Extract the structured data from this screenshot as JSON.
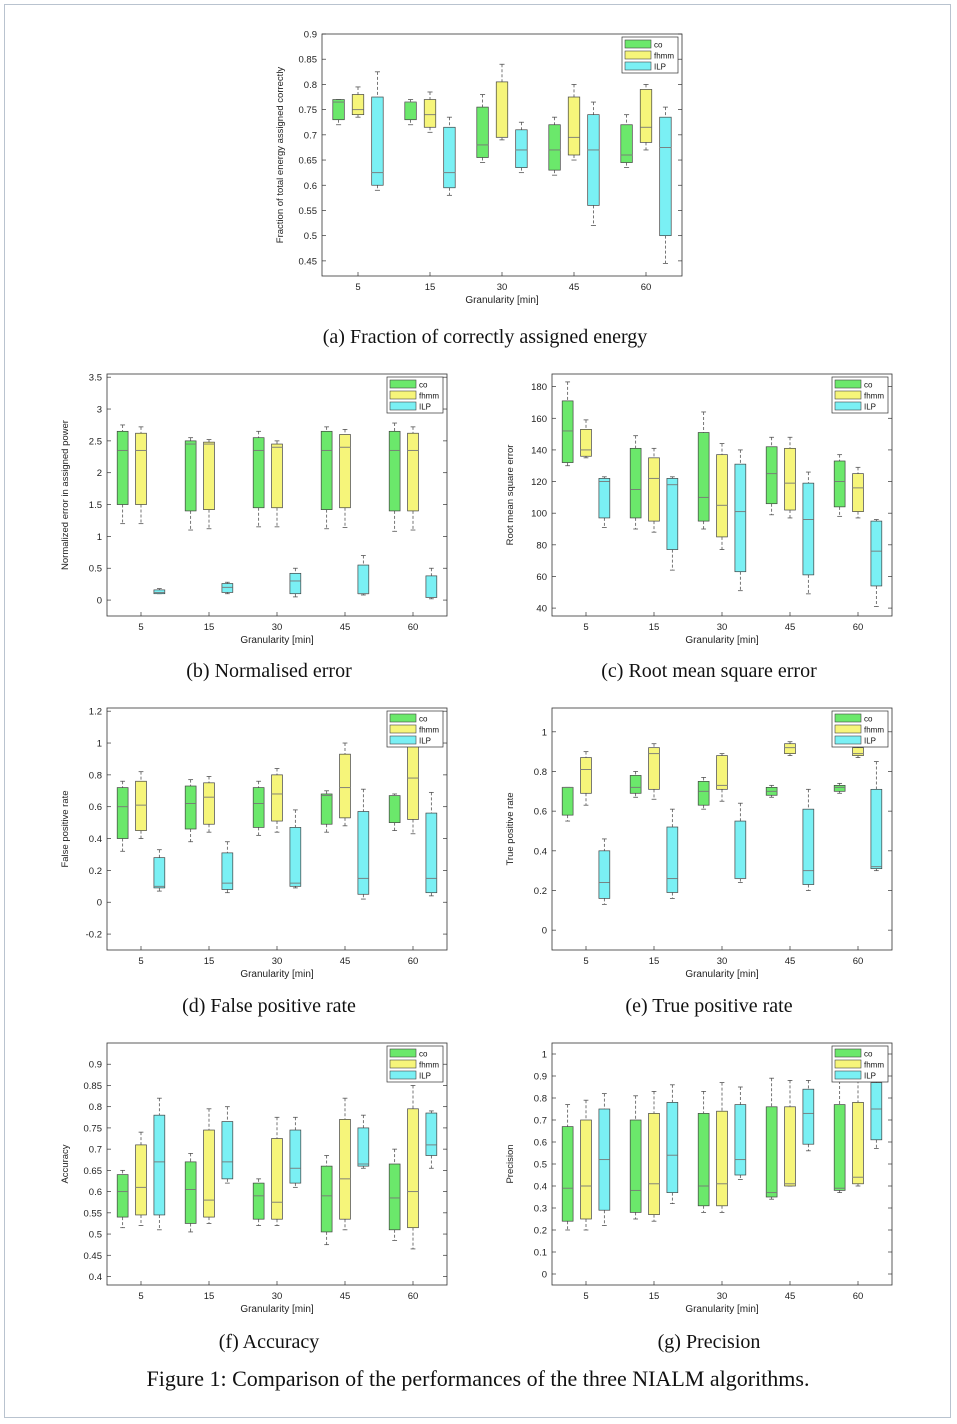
{
  "figure_caption": "Figure 1: Comparison of the performances of the three NIALM algorithms.",
  "legend": [
    "co",
    "fhmm",
    "ILP"
  ],
  "colors": {
    "co": "#6be86b",
    "fhmm": "#f6f57a",
    "ILP": "#7af0f4",
    "axis": "#333333",
    "whisker": "#555555"
  },
  "chart_data": [
    {
      "id": "a",
      "type": "box",
      "caption": "(a) Fraction of correctly assigned energy",
      "xlabel": "Granularity [min]",
      "ylabel": "Fraction of total energy assigned correctly",
      "categories": [
        "5",
        "15",
        "30",
        "45",
        "60"
      ],
      "ylim": [
        0.42,
        0.9
      ],
      "yticks": [
        0.45,
        0.5,
        0.55,
        0.6,
        0.65,
        0.7,
        0.75,
        0.8,
        0.85,
        0.9
      ],
      "legend_position": "top-right",
      "series": [
        {
          "name": "co",
          "boxes": [
            [
              0.72,
              0.73,
              0.765,
              0.77,
              0.77
            ],
            [
              0.72,
              0.73,
              0.765,
              0.765,
              0.77
            ],
            [
              0.645,
              0.655,
              0.68,
              0.755,
              0.78
            ],
            [
              0.62,
              0.63,
              0.67,
              0.72,
              0.735
            ],
            [
              0.635,
              0.645,
              0.66,
              0.72,
              0.74
            ]
          ]
        },
        {
          "name": "fhmm",
          "boxes": [
            [
              0.735,
              0.74,
              0.75,
              0.78,
              0.795
            ],
            [
              0.705,
              0.715,
              0.74,
              0.77,
              0.785
            ],
            [
              0.69,
              0.695,
              0.695,
              0.805,
              0.84
            ],
            [
              0.65,
              0.66,
              0.695,
              0.775,
              0.8
            ],
            [
              0.67,
              0.685,
              0.715,
              0.79,
              0.8
            ]
          ]
        },
        {
          "name": "ILP",
          "boxes": [
            [
              0.59,
              0.6,
              0.625,
              0.775,
              0.825
            ],
            [
              0.58,
              0.595,
              0.625,
              0.715,
              0.735
            ],
            [
              0.625,
              0.635,
              0.67,
              0.71,
              0.725
            ],
            [
              0.52,
              0.56,
              0.67,
              0.74,
              0.765
            ],
            [
              0.445,
              0.5,
              0.675,
              0.735,
              0.755
            ]
          ]
        }
      ]
    },
    {
      "id": "b",
      "type": "box",
      "caption": "(b) Normalised error",
      "xlabel": "Granularity [min]",
      "ylabel": "Normalized error in assigned power",
      "categories": [
        "5",
        "15",
        "30",
        "45",
        "60"
      ],
      "ylim": [
        -0.25,
        3.55
      ],
      "yticks": [
        0,
        0.5,
        1,
        1.5,
        2,
        2.5,
        3,
        3.5
      ],
      "legend_position": "top-right",
      "series": [
        {
          "name": "co",
          "boxes": [
            [
              1.2,
              1.5,
              2.35,
              2.65,
              2.75
            ],
            [
              1.1,
              1.4,
              2.45,
              2.5,
              2.55
            ],
            [
              1.15,
              1.45,
              2.35,
              2.55,
              2.65
            ],
            [
              1.12,
              1.42,
              2.35,
              2.65,
              2.72
            ],
            [
              1.08,
              1.4,
              2.35,
              2.65,
              2.78
            ]
          ]
        },
        {
          "name": "fhmm",
          "boxes": [
            [
              1.2,
              1.5,
              2.35,
              2.62,
              2.72
            ],
            [
              1.12,
              1.42,
              2.45,
              2.48,
              2.52
            ],
            [
              1.15,
              1.45,
              2.4,
              2.45,
              2.5
            ],
            [
              1.14,
              1.45,
              2.4,
              2.6,
              2.68
            ],
            [
              1.1,
              1.4,
              2.35,
              2.62,
              2.72
            ]
          ]
        },
        {
          "name": "ILP",
          "boxes": [
            [
              0.1,
              0.1,
              0.12,
              0.16,
              0.18
            ],
            [
              0.1,
              0.12,
              0.2,
              0.26,
              0.28
            ],
            [
              0.05,
              0.1,
              0.3,
              0.42,
              0.5
            ],
            [
              0.08,
              0.1,
              0.1,
              0.55,
              0.7
            ],
            [
              0.02,
              0.04,
              0.04,
              0.38,
              0.5
            ]
          ]
        }
      ]
    },
    {
      "id": "c",
      "type": "box",
      "caption": "(c) Root mean square error",
      "xlabel": "Granularity [min]",
      "ylabel": "Root mean square error",
      "categories": [
        "5",
        "15",
        "30",
        "45",
        "60"
      ],
      "ylim": [
        35,
        188
      ],
      "yticks": [
        40,
        60,
        80,
        100,
        120,
        140,
        160,
        180
      ],
      "legend_position": "top-right",
      "series": [
        {
          "name": "co",
          "boxes": [
            [
              130,
              132,
              152,
              171,
              183
            ],
            [
              90,
              97,
              115,
              141,
              149
            ],
            [
              90,
              95,
              110,
              151,
              164
            ],
            [
              99,
              106,
              125,
              142,
              148
            ],
            [
              98,
              104,
              120,
              133,
              137
            ]
          ]
        },
        {
          "name": "fhmm",
          "boxes": [
            [
              135,
              136,
              140,
              153,
              159
            ],
            [
              88,
              95,
              122,
              135,
              141
            ],
            [
              77,
              85,
              105,
              137,
              144
            ],
            [
              97,
              102,
              119,
              141,
              148
            ],
            [
              97,
              101,
              116,
              125,
              129
            ]
          ]
        },
        {
          "name": "ILP",
          "boxes": [
            [
              91,
              97,
              120,
              122,
              123
            ],
            [
              64,
              77,
              118,
              122,
              123
            ],
            [
              51,
              63,
              101,
              131,
              140
            ],
            [
              49,
              61,
              96,
              119,
              126
            ],
            [
              41,
              54,
              76,
              95,
              96
            ]
          ]
        }
      ]
    },
    {
      "id": "d",
      "type": "box",
      "caption": "(d) False positive rate",
      "xlabel": "Granularity [min]",
      "ylabel": "False positive rate",
      "categories": [
        "5",
        "15",
        "30",
        "45",
        "60"
      ],
      "ylim": [
        -0.3,
        1.22
      ],
      "yticks": [
        -0.2,
        0,
        0.2,
        0.4,
        0.6,
        0.8,
        1,
        1.2
      ],
      "legend_position": "top-right",
      "series": [
        {
          "name": "co",
          "boxes": [
            [
              0.32,
              0.4,
              0.6,
              0.72,
              0.76
            ],
            [
              0.38,
              0.46,
              0.62,
              0.73,
              0.77
            ],
            [
              0.42,
              0.47,
              0.62,
              0.72,
              0.76
            ],
            [
              0.44,
              0.49,
              0.67,
              0.68,
              0.7
            ],
            [
              0.45,
              0.5,
              0.67,
              0.67,
              0.68
            ]
          ]
        },
        {
          "name": "fhmm",
          "boxes": [
            [
              0.4,
              0.45,
              0.61,
              0.76,
              0.82
            ],
            [
              0.44,
              0.49,
              0.66,
              0.75,
              0.79
            ],
            [
              0.44,
              0.51,
              0.68,
              0.8,
              0.84
            ],
            [
              0.48,
              0.53,
              0.72,
              0.93,
              1.0
            ],
            [
              0.43,
              0.52,
              0.78,
              1.05,
              1.1
            ]
          ]
        },
        {
          "name": "ILP",
          "boxes": [
            [
              0.07,
              0.09,
              0.1,
              0.28,
              0.33
            ],
            [
              0.06,
              0.08,
              0.12,
              0.31,
              0.38
            ],
            [
              0.09,
              0.1,
              0.12,
              0.47,
              0.58
            ],
            [
              0.02,
              0.05,
              0.15,
              0.57,
              0.71
            ],
            [
              0.04,
              0.06,
              0.15,
              0.56,
              0.69
            ]
          ]
        }
      ]
    },
    {
      "id": "e",
      "type": "box",
      "caption": "(e) True positive rate",
      "xlabel": "Granularity [min]",
      "ylabel": "True positive rate",
      "categories": [
        "5",
        "15",
        "30",
        "45",
        "60"
      ],
      "ylim": [
        -0.1,
        1.12
      ],
      "yticks": [
        0,
        0.2,
        0.4,
        0.6,
        0.8,
        1
      ],
      "legend_position": "top-right",
      "series": [
        {
          "name": "co",
          "boxes": [
            [
              0.55,
              0.58,
              0.72,
              0.72,
              0.72
            ],
            [
              0.67,
              0.69,
              0.72,
              0.78,
              0.8
            ],
            [
              0.61,
              0.63,
              0.7,
              0.75,
              0.77
            ],
            [
              0.67,
              0.68,
              0.7,
              0.72,
              0.73
            ],
            [
              0.69,
              0.7,
              0.72,
              0.73,
              0.74
            ]
          ]
        },
        {
          "name": "fhmm",
          "boxes": [
            [
              0.63,
              0.69,
              0.81,
              0.87,
              0.9
            ],
            [
              0.66,
              0.71,
              0.89,
              0.92,
              0.94
            ],
            [
              0.65,
              0.71,
              0.73,
              0.88,
              0.89
            ],
            [
              0.88,
              0.89,
              0.92,
              0.94,
              0.95
            ],
            [
              0.87,
              0.88,
              0.89,
              0.92,
              0.93
            ]
          ]
        },
        {
          "name": "ILP",
          "boxes": [
            [
              0.13,
              0.16,
              0.24,
              0.4,
              0.46
            ],
            [
              0.16,
              0.19,
              0.26,
              0.52,
              0.61
            ],
            [
              0.24,
              0.26,
              0.26,
              0.55,
              0.64
            ],
            [
              0.2,
              0.23,
              0.3,
              0.61,
              0.71
            ],
            [
              0.3,
              0.31,
              0.32,
              0.71,
              0.85
            ]
          ]
        }
      ]
    },
    {
      "id": "f",
      "type": "box",
      "caption": "(f) Accuracy",
      "xlabel": "Granularity [min]",
      "ylabel": "Accuracy",
      "categories": [
        "5",
        "15",
        "30",
        "45",
        "60"
      ],
      "ylim": [
        0.38,
        0.95
      ],
      "yticks": [
        0.4,
        0.45,
        0.5,
        0.55,
        0.6,
        0.65,
        0.7,
        0.75,
        0.8,
        0.85,
        0.9
      ],
      "legend_position": "top-right",
      "series": [
        {
          "name": "co",
          "boxes": [
            [
              0.515,
              0.54,
              0.6,
              0.64,
              0.65
            ],
            [
              0.505,
              0.525,
              0.605,
              0.67,
              0.69
            ],
            [
              0.52,
              0.535,
              0.59,
              0.62,
              0.63
            ],
            [
              0.475,
              0.505,
              0.59,
              0.66,
              0.685
            ],
            [
              0.485,
              0.51,
              0.585,
              0.665,
              0.7
            ]
          ]
        },
        {
          "name": "fhmm",
          "boxes": [
            [
              0.52,
              0.545,
              0.61,
              0.71,
              0.74
            ],
            [
              0.525,
              0.54,
              0.58,
              0.745,
              0.795
            ],
            [
              0.52,
              0.535,
              0.575,
              0.725,
              0.775
            ],
            [
              0.51,
              0.535,
              0.63,
              0.77,
              0.82
            ],
            [
              0.465,
              0.515,
              0.6,
              0.795,
              0.85
            ]
          ]
        },
        {
          "name": "ILP",
          "boxes": [
            [
              0.51,
              0.545,
              0.67,
              0.78,
              0.82
            ],
            [
              0.62,
              0.63,
              0.67,
              0.765,
              0.8
            ],
            [
              0.61,
              0.62,
              0.655,
              0.745,
              0.775
            ],
            [
              0.655,
              0.66,
              0.665,
              0.75,
              0.78
            ],
            [
              0.655,
              0.685,
              0.71,
              0.785,
              0.79
            ]
          ]
        }
      ]
    },
    {
      "id": "g",
      "type": "box",
      "caption": "(g) Precision",
      "xlabel": "Granularity [min]",
      "ylabel": "Precision",
      "categories": [
        "5",
        "15",
        "30",
        "45",
        "60"
      ],
      "ylim": [
        -0.05,
        1.05
      ],
      "yticks": [
        0,
        0.1,
        0.2,
        0.3,
        0.4,
        0.5,
        0.6,
        0.7,
        0.8,
        0.9,
        1
      ],
      "legend_position": "top-right",
      "series": [
        {
          "name": "co",
          "boxes": [
            [
              0.2,
              0.24,
              0.39,
              0.67,
              0.77
            ],
            [
              0.25,
              0.28,
              0.38,
              0.7,
              0.81
            ],
            [
              0.28,
              0.31,
              0.4,
              0.73,
              0.83
            ],
            [
              0.34,
              0.35,
              0.37,
              0.76,
              0.89
            ],
            [
              0.37,
              0.38,
              0.39,
              0.77,
              0.9
            ]
          ]
        },
        {
          "name": "fhmm",
          "boxes": [
            [
              0.2,
              0.25,
              0.4,
              0.7,
              0.79
            ],
            [
              0.24,
              0.27,
              0.41,
              0.73,
              0.83
            ],
            [
              0.28,
              0.31,
              0.41,
              0.74,
              0.87
            ],
            [
              0.4,
              0.4,
              0.41,
              0.76,
              0.88
            ],
            [
              0.4,
              0.41,
              0.44,
              0.78,
              0.88
            ]
          ]
        },
        {
          "name": "ILP",
          "boxes": [
            [
              0.22,
              0.29,
              0.52,
              0.75,
              0.82
            ],
            [
              0.32,
              0.37,
              0.54,
              0.78,
              0.86
            ],
            [
              0.43,
              0.45,
              0.52,
              0.77,
              0.85
            ],
            [
              0.56,
              0.59,
              0.73,
              0.84,
              0.88
            ],
            [
              0.57,
              0.61,
              0.75,
              0.87,
              0.95
            ]
          ]
        }
      ]
    }
  ]
}
